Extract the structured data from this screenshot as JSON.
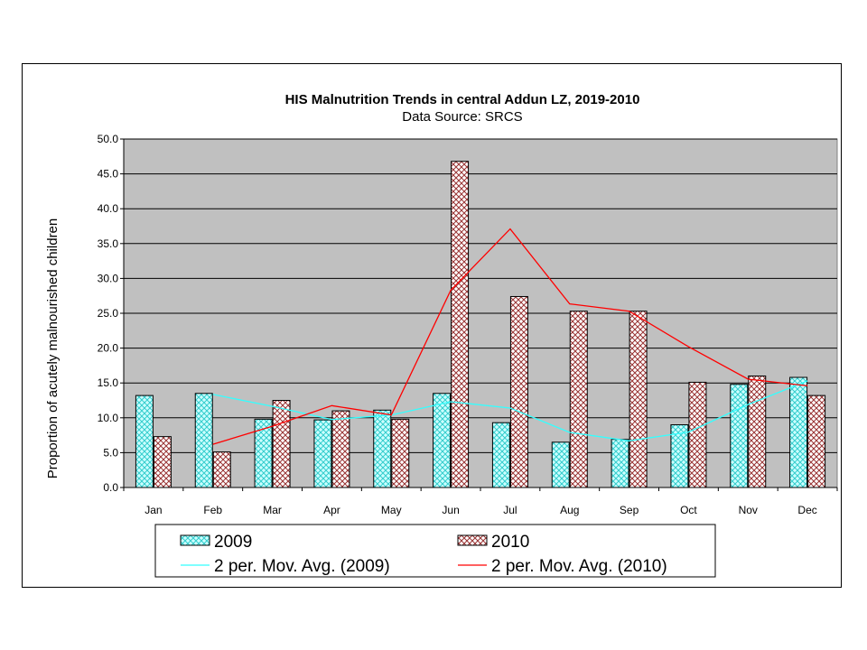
{
  "chart_data": {
    "type": "bar",
    "title": "HIS Malnutrition Trends in central Addun  LZ, 2019-2010",
    "subtitle": "Data Source: SRCS",
    "xlabel": "",
    "ylabel": "Proportion of acutely malnourished children",
    "ylim": [
      0,
      50
    ],
    "yticks": [
      "0.0",
      "5.0",
      "10.0",
      "15.0",
      "20.0",
      "25.0",
      "30.0",
      "35.0",
      "40.0",
      "45.0",
      "50.0"
    ],
    "categories": [
      "Jan",
      "Feb",
      "Mar",
      "Apr",
      "May",
      "Jun",
      "Jul",
      "Aug",
      "Sep",
      "Oct",
      "Nov",
      "Dec"
    ],
    "series": [
      {
        "name": "2009",
        "values": [
          13.2,
          13.5,
          9.8,
          9.7,
          11.1,
          13.5,
          9.3,
          6.5,
          6.9,
          9.0,
          14.8,
          15.8
        ],
        "color": "#99ffff",
        "pattern": "diagonal-cross"
      },
      {
        "name": "2010",
        "values": [
          7.3,
          5.1,
          12.5,
          11.0,
          9.8,
          46.8,
          27.4,
          25.3,
          25.3,
          15.1,
          16.0,
          13.2
        ],
        "color": "#cc9999",
        "pattern": "cross-hatch"
      }
    ],
    "trendlines": [
      {
        "name": "2 per. Mov. Avg. (2009)",
        "color": "#33ffff"
      },
      {
        "name": "2 per. Mov. Avg. (2010)",
        "color": "#ff0000"
      }
    ],
    "plot_background": "#c0c0c0",
    "grid": true,
    "legend_position": "bottom"
  }
}
